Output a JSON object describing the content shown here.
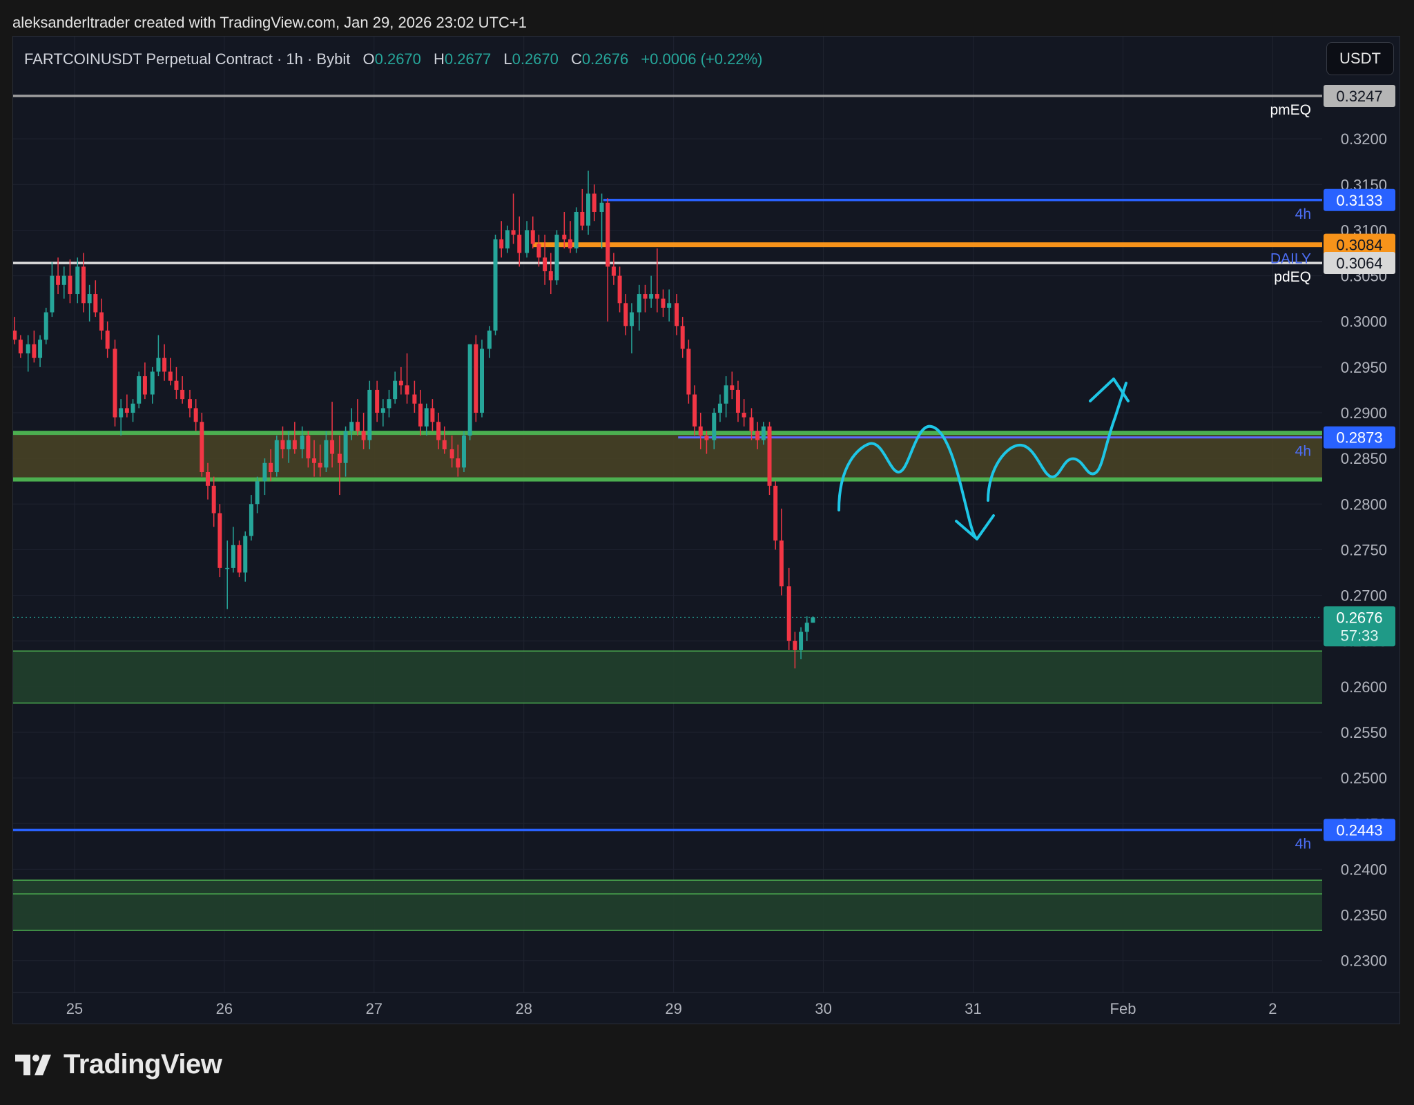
{
  "header": {
    "credit": "aleksanderltrader created with TradingView.com, Jan 29, 2026 23:02 UTC+1"
  },
  "legend": {
    "symbol": "FARTCOINUSDT Perpetual Contract · 1h · Bybit",
    "o_label": "O",
    "o_value": "0.2670",
    "h_label": "H",
    "h_value": "0.2677",
    "l_label": "L",
    "l_value": "0.2670",
    "c_label": "C",
    "c_value": "0.2676",
    "change": "+0.0006 (+0.22%)"
  },
  "toolbar": {
    "currency_label": "USDT"
  },
  "brand": {
    "name": "TradingView"
  },
  "colors": {
    "background": "#131722",
    "up": "#26a69a",
    "down": "#f23645",
    "blue_level": "#2962ff",
    "orange_level": "#f7931a",
    "green_zone": "#4caf50",
    "annotation": "#00bcd4"
  },
  "chart_data": {
    "type": "candlestick",
    "title": "",
    "ylim": [
      0.2265,
      0.3312
    ],
    "y_ticks": [
      "0.2300",
      "0.2350",
      "0.2400",
      "0.2450",
      "0.2500",
      "0.2550",
      "0.2600",
      "0.2650",
      "0.2700",
      "0.2750",
      "0.2800",
      "0.2850",
      "0.2900",
      "0.2950",
      "0.3000",
      "0.3050",
      "0.3100",
      "0.3150",
      "0.3200"
    ],
    "x_ticks": [
      {
        "label": "25",
        "day": 25
      },
      {
        "label": "26",
        "day": 26
      },
      {
        "label": "27",
        "day": 27
      },
      {
        "label": "28",
        "day": 28
      },
      {
        "label": "29",
        "day": 29
      },
      {
        "label": "30",
        "day": 30
      },
      {
        "label": "31",
        "day": 31
      },
      {
        "label": "Feb",
        "day": 32
      },
      {
        "label": "2",
        "day": 33
      }
    ],
    "x_start_day": 24.59,
    "x_end_day": 33.33,
    "last_price": {
      "value": "0.2676",
      "countdown": "57:33"
    },
    "levels": [
      {
        "value": 0.3247,
        "label": "0.3247",
        "name": "pmEQ",
        "color": "#9e9e9e",
        "from_day": 24.59
      },
      {
        "value": 0.3133,
        "label": "0.3133",
        "name": "4h",
        "color": "#2962ff",
        "from_day": 28.53
      },
      {
        "value": 0.3084,
        "label": "0.3084",
        "name": "DAILY",
        "color": "#f7931a",
        "from_day": 28.06
      },
      {
        "value": 0.3064,
        "label": "0.3064",
        "name": "pdEQ",
        "color": "#e0e0e0",
        "from_day": 24.59
      },
      {
        "value": 0.2873,
        "label": "0.2873",
        "name": "4h",
        "color": "#5c6bff",
        "from_day": 29.03
      },
      {
        "value": 0.2443,
        "label": "0.2443",
        "name": "4h",
        "color": "#2962ff",
        "from_day": 24.59
      }
    ],
    "zones": [
      {
        "top": 0.2878,
        "bottom": 0.2827,
        "style": "olive"
      },
      {
        "top": 0.2639,
        "bottom": 0.2582,
        "style": "green"
      },
      {
        "top": 0.2388,
        "bottom": 0.2333,
        "style": "green",
        "mid": 0.2373
      }
    ],
    "candles": [
      [
        24.6,
        0.299,
        0.3005,
        0.2975,
        0.298
      ],
      [
        24.64,
        0.298,
        0.2985,
        0.296,
        0.2965
      ],
      [
        24.69,
        0.2965,
        0.2985,
        0.2945,
        0.2975
      ],
      [
        24.73,
        0.2975,
        0.299,
        0.2955,
        0.296
      ],
      [
        24.77,
        0.296,
        0.2985,
        0.295,
        0.298
      ],
      [
        24.81,
        0.298,
        0.3015,
        0.2975,
        0.301
      ],
      [
        24.85,
        0.301,
        0.3065,
        0.3005,
        0.305
      ],
      [
        24.89,
        0.305,
        0.307,
        0.303,
        0.304
      ],
      [
        24.93,
        0.304,
        0.306,
        0.3025,
        0.305
      ],
      [
        24.97,
        0.305,
        0.3068,
        0.302,
        0.303
      ],
      [
        25.02,
        0.303,
        0.307,
        0.302,
        0.306
      ],
      [
        25.06,
        0.306,
        0.3075,
        0.301,
        0.302
      ],
      [
        25.1,
        0.302,
        0.304,
        0.3,
        0.303
      ],
      [
        25.14,
        0.303,
        0.3045,
        0.3005,
        0.301
      ],
      [
        25.18,
        0.301,
        0.3025,
        0.298,
        0.299
      ],
      [
        25.22,
        0.299,
        0.3,
        0.296,
        0.297
      ],
      [
        25.27,
        0.297,
        0.298,
        0.2885,
        0.2895
      ],
      [
        25.31,
        0.2895,
        0.2915,
        0.2875,
        0.2905
      ],
      [
        25.35,
        0.2905,
        0.292,
        0.2895,
        0.29
      ],
      [
        25.39,
        0.29,
        0.2915,
        0.289,
        0.291
      ],
      [
        25.43,
        0.291,
        0.2945,
        0.2905,
        0.294
      ],
      [
        25.47,
        0.294,
        0.2955,
        0.2915,
        0.292
      ],
      [
        25.52,
        0.292,
        0.295,
        0.291,
        0.2945
      ],
      [
        25.56,
        0.2945,
        0.2985,
        0.294,
        0.296
      ],
      [
        25.6,
        0.296,
        0.2975,
        0.2935,
        0.2945
      ],
      [
        25.64,
        0.2945,
        0.296,
        0.293,
        0.2935
      ],
      [
        25.68,
        0.2935,
        0.295,
        0.2915,
        0.2925
      ],
      [
        25.72,
        0.2925,
        0.294,
        0.291,
        0.2915
      ],
      [
        25.77,
        0.2915,
        0.2925,
        0.2895,
        0.2905
      ],
      [
        25.81,
        0.2905,
        0.2915,
        0.288,
        0.289
      ],
      [
        25.85,
        0.289,
        0.29,
        0.283,
        0.2835
      ],
      [
        25.89,
        0.2835,
        0.2845,
        0.2805,
        0.282
      ],
      [
        25.93,
        0.282,
        0.283,
        0.2775,
        0.279
      ],
      [
        25.97,
        0.279,
        0.28,
        0.272,
        0.273
      ],
      [
        26.02,
        0.273,
        0.276,
        0.2685,
        0.273
      ],
      [
        26.06,
        0.273,
        0.2775,
        0.2725,
        0.2755
      ],
      [
        26.1,
        0.2755,
        0.276,
        0.272,
        0.2725
      ],
      [
        26.14,
        0.2725,
        0.277,
        0.2715,
        0.2765
      ],
      [
        26.18,
        0.2765,
        0.281,
        0.276,
        0.28
      ],
      [
        26.22,
        0.28,
        0.283,
        0.279,
        0.2825
      ],
      [
        26.27,
        0.2825,
        0.285,
        0.281,
        0.2845
      ],
      [
        26.31,
        0.2845,
        0.286,
        0.2825,
        0.2835
      ],
      [
        26.35,
        0.2835,
        0.2875,
        0.283,
        0.287
      ],
      [
        26.39,
        0.287,
        0.2885,
        0.285,
        0.286
      ],
      [
        26.43,
        0.286,
        0.288,
        0.2845,
        0.287
      ],
      [
        26.47,
        0.287,
        0.289,
        0.2855,
        0.286
      ],
      [
        26.52,
        0.286,
        0.2885,
        0.285,
        0.2875
      ],
      [
        26.56,
        0.2875,
        0.288,
        0.284,
        0.285
      ],
      [
        26.6,
        0.285,
        0.287,
        0.283,
        0.2845
      ],
      [
        26.64,
        0.2845,
        0.2865,
        0.283,
        0.284
      ],
      [
        26.68,
        0.284,
        0.288,
        0.2835,
        0.287
      ],
      [
        26.72,
        0.287,
        0.2912,
        0.284,
        0.2855
      ],
      [
        26.77,
        0.2855,
        0.2875,
        0.281,
        0.2845
      ],
      [
        26.81,
        0.2845,
        0.2885,
        0.283,
        0.288
      ],
      [
        26.85,
        0.288,
        0.2905,
        0.287,
        0.289
      ],
      [
        26.89,
        0.289,
        0.2915,
        0.2875,
        0.288
      ],
      [
        26.93,
        0.288,
        0.29,
        0.286,
        0.287
      ],
      [
        26.97,
        0.287,
        0.2935,
        0.286,
        0.2925
      ],
      [
        27.02,
        0.2925,
        0.2935,
        0.289,
        0.29
      ],
      [
        27.06,
        0.29,
        0.2915,
        0.2885,
        0.2905
      ],
      [
        27.1,
        0.2905,
        0.2925,
        0.2895,
        0.2915
      ],
      [
        27.14,
        0.2915,
        0.2945,
        0.291,
        0.2935
      ],
      [
        27.18,
        0.2935,
        0.295,
        0.292,
        0.293
      ],
      [
        27.22,
        0.293,
        0.2965,
        0.291,
        0.292
      ],
      [
        27.27,
        0.292,
        0.2935,
        0.29,
        0.291
      ],
      [
        27.31,
        0.291,
        0.2925,
        0.2875,
        0.2885
      ],
      [
        27.35,
        0.2885,
        0.291,
        0.2875,
        0.2905
      ],
      [
        27.39,
        0.2905,
        0.2915,
        0.288,
        0.289
      ],
      [
        27.43,
        0.289,
        0.29,
        0.286,
        0.287
      ],
      [
        27.47,
        0.287,
        0.2885,
        0.2855,
        0.286
      ],
      [
        27.52,
        0.286,
        0.2875,
        0.284,
        0.285
      ],
      [
        27.56,
        0.285,
        0.2865,
        0.283,
        0.284
      ],
      [
        27.6,
        0.284,
        0.288,
        0.2835,
        0.2875
      ],
      [
        27.64,
        0.2875,
        0.2975,
        0.287,
        0.2975
      ],
      [
        27.68,
        0.2975,
        0.2985,
        0.289,
        0.29
      ],
      [
        27.72,
        0.29,
        0.298,
        0.2895,
        0.297
      ],
      [
        27.77,
        0.297,
        0.2995,
        0.296,
        0.299
      ],
      [
        27.81,
        0.299,
        0.3095,
        0.2985,
        0.309
      ],
      [
        27.85,
        0.309,
        0.311,
        0.307,
        0.308
      ],
      [
        27.89,
        0.308,
        0.3105,
        0.3075,
        0.31
      ],
      [
        27.93,
        0.31,
        0.314,
        0.3085,
        0.3095
      ],
      [
        27.97,
        0.3095,
        0.3115,
        0.306,
        0.3075
      ],
      [
        28.02,
        0.3075,
        0.311,
        0.307,
        0.31
      ],
      [
        28.06,
        0.31,
        0.3115,
        0.308,
        0.3085
      ],
      [
        28.1,
        0.3085,
        0.3095,
        0.306,
        0.307
      ],
      [
        28.14,
        0.307,
        0.3095,
        0.304,
        0.3055
      ],
      [
        28.18,
        0.3055,
        0.3075,
        0.303,
        0.3045
      ],
      [
        28.22,
        0.3045,
        0.31,
        0.304,
        0.3095
      ],
      [
        28.27,
        0.3095,
        0.312,
        0.308,
        0.309
      ],
      [
        28.31,
        0.309,
        0.311,
        0.3075,
        0.308
      ],
      [
        28.35,
        0.308,
        0.3125,
        0.3075,
        0.312
      ],
      [
        28.39,
        0.312,
        0.3145,
        0.31,
        0.3105
      ],
      [
        28.43,
        0.3105,
        0.3165,
        0.3095,
        0.314
      ],
      [
        28.47,
        0.314,
        0.315,
        0.311,
        0.312
      ],
      [
        28.52,
        0.312,
        0.314,
        0.308,
        0.313
      ],
      [
        28.56,
        0.313,
        0.3135,
        0.3,
        0.306
      ],
      [
        28.6,
        0.306,
        0.3075,
        0.304,
        0.305
      ],
      [
        28.64,
        0.305,
        0.306,
        0.301,
        0.302
      ],
      [
        28.68,
        0.302,
        0.303,
        0.2985,
        0.2995
      ],
      [
        28.72,
        0.2995,
        0.302,
        0.2965,
        0.301
      ],
      [
        28.77,
        0.301,
        0.304,
        0.299,
        0.303
      ],
      [
        28.81,
        0.303,
        0.304,
        0.301,
        0.3025
      ],
      [
        28.85,
        0.3025,
        0.305,
        0.3015,
        0.303
      ],
      [
        28.89,
        0.303,
        0.308,
        0.301,
        0.3025
      ],
      [
        28.93,
        0.3025,
        0.3035,
        0.3005,
        0.3015
      ],
      [
        28.97,
        0.3015,
        0.3035,
        0.3,
        0.302
      ],
      [
        29.02,
        0.302,
        0.303,
        0.2985,
        0.2995
      ],
      [
        29.06,
        0.2995,
        0.3005,
        0.296,
        0.297
      ],
      [
        29.1,
        0.297,
        0.298,
        0.291,
        0.292
      ],
      [
        29.14,
        0.292,
        0.293,
        0.2875,
        0.2885
      ],
      [
        29.18,
        0.2885,
        0.29,
        0.286,
        0.2875
      ],
      [
        29.22,
        0.2875,
        0.288,
        0.2855,
        0.287
      ],
      [
        29.27,
        0.287,
        0.2905,
        0.286,
        0.29
      ],
      [
        29.31,
        0.29,
        0.292,
        0.289,
        0.291
      ],
      [
        29.35,
        0.291,
        0.294,
        0.2895,
        0.293
      ],
      [
        29.39,
        0.293,
        0.2945,
        0.2915,
        0.2925
      ],
      [
        29.43,
        0.2925,
        0.2935,
        0.289,
        0.29
      ],
      [
        29.47,
        0.29,
        0.2915,
        0.2885,
        0.2895
      ],
      [
        29.52,
        0.2895,
        0.2905,
        0.287,
        0.288
      ],
      [
        29.56,
        0.288,
        0.289,
        0.286,
        0.287
      ],
      [
        29.6,
        0.287,
        0.289,
        0.2865,
        0.2885
      ],
      [
        29.64,
        0.2885,
        0.289,
        0.281,
        0.282
      ],
      [
        29.68,
        0.282,
        0.2825,
        0.275,
        0.276
      ],
      [
        29.72,
        0.276,
        0.2795,
        0.27,
        0.271
      ],
      [
        29.77,
        0.271,
        0.273,
        0.264,
        0.265
      ],
      [
        29.81,
        0.265,
        0.266,
        0.262,
        0.264
      ],
      [
        29.85,
        0.264,
        0.2665,
        0.263,
        0.266
      ],
      [
        29.89,
        0.266,
        0.2677,
        0.265,
        0.267
      ],
      [
        29.93,
        0.267,
        0.2677,
        0.267,
        0.2676
      ]
    ]
  }
}
